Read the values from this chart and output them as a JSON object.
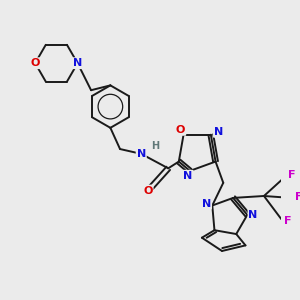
{
  "background_color": "#ebebeb",
  "bond_color": "#1a1a1a",
  "bond_lw": 1.4,
  "font_size": 8.0,
  "fig_width": 3.0,
  "fig_height": 3.0,
  "dpi": 100,
  "colors": {
    "N": "#1010dd",
    "O": "#dd0000",
    "F": "#cc00cc",
    "H": "#607878",
    "C": "#1a1a1a"
  }
}
